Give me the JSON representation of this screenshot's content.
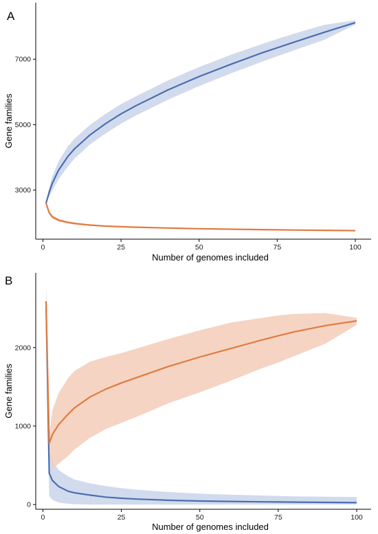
{
  "chart_data": [
    {
      "type": "line",
      "panel_label": "A",
      "xlabel": "Number of genomes included",
      "ylabel": "Gene families",
      "xlim": [
        1,
        100
      ],
      "ylim": [
        1500,
        8600
      ],
      "xticks": [
        0,
        25,
        50,
        75,
        100
      ],
      "yticks": [
        3000,
        5000,
        7000
      ],
      "grid": false,
      "legend": "none",
      "x": [
        1,
        2,
        3,
        5,
        8,
        10,
        15,
        20,
        25,
        30,
        40,
        50,
        60,
        70,
        75,
        80,
        90,
        100
      ],
      "series": [
        {
          "color": "#4a6eb0",
          "band_color": "#c9d5ea",
          "values": [
            2600,
            2930,
            3210,
            3610,
            4030,
            4250,
            4680,
            5030,
            5330,
            5590,
            6060,
            6470,
            6840,
            7190,
            7350,
            7510,
            7820,
            8120
          ],
          "lower": [
            2600,
            2790,
            2990,
            3330,
            3720,
            3950,
            4390,
            4730,
            5030,
            5290,
            5760,
            6180,
            6560,
            6920,
            7090,
            7260,
            7590,
            8060
          ],
          "upper": [
            2600,
            3080,
            3420,
            3880,
            4340,
            4560,
            4990,
            5330,
            5630,
            5880,
            6350,
            6760,
            7130,
            7460,
            7620,
            7770,
            8050,
            8190
          ]
        },
        {
          "color": "#e07b3f",
          "band_color": "#f3cdb8",
          "values": [
            2600,
            2310,
            2180,
            2080,
            2010,
            1980,
            1930,
            1900,
            1880,
            1865,
            1840,
            1820,
            1805,
            1792,
            1786,
            1780,
            1770,
            1760
          ],
          "lower": [
            2600,
            2260,
            2130,
            2040,
            1980,
            1950,
            1910,
            1885,
            1865,
            1852,
            1830,
            1812,
            1798,
            1786,
            1780,
            1775,
            1765,
            1756
          ],
          "upper": [
            2600,
            2370,
            2240,
            2130,
            2050,
            2015,
            1955,
            1918,
            1895,
            1880,
            1852,
            1830,
            1813,
            1799,
            1792,
            1786,
            1775,
            1765
          ]
        }
      ]
    },
    {
      "type": "line",
      "panel_label": "B",
      "xlabel": "Number of genomes included",
      "ylabel": "Gene families",
      "xlim": [
        1,
        100
      ],
      "ylim": [
        -60,
        2900
      ],
      "xticks": [
        0,
        25,
        50,
        75,
        100
      ],
      "yticks": [
        0,
        1000,
        2000
      ],
      "grid": false,
      "legend": "none",
      "x": [
        1,
        2,
        3,
        5,
        8,
        10,
        15,
        20,
        25,
        30,
        40,
        50,
        60,
        70,
        75,
        80,
        90,
        100
      ],
      "series": [
        {
          "color": "#4a6eb0",
          "band_color": "#c9d5ea",
          "values": [
            2590,
            400,
            310,
            230,
            170,
            150,
            120,
            95,
            80,
            70,
            55,
            45,
            40,
            35,
            33,
            31,
            28,
            25
          ],
          "lower": [
            2450,
            110,
            60,
            25,
            10,
            5,
            0,
            0,
            0,
            0,
            0,
            0,
            0,
            0,
            0,
            0,
            0,
            0
          ],
          "upper": [
            2780,
            680,
            560,
            440,
            360,
            320,
            270,
            235,
            210,
            190,
            160,
            140,
            125,
            115,
            110,
            105,
            100,
            95
          ]
        },
        {
          "color": "#e07b3f",
          "band_color": "#f3cdb8",
          "values": [
            2590,
            780,
            890,
            1020,
            1150,
            1230,
            1370,
            1470,
            1550,
            1620,
            1760,
            1880,
            1990,
            2100,
            2150,
            2200,
            2280,
            2340
          ],
          "lower": [
            2450,
            720,
            460,
            520,
            620,
            700,
            850,
            960,
            1040,
            1120,
            1290,
            1430,
            1580,
            1740,
            1810,
            1890,
            2050,
            2290
          ],
          "upper": [
            2780,
            860,
            1200,
            1420,
            1610,
            1700,
            1820,
            1880,
            1930,
            1990,
            2110,
            2220,
            2320,
            2380,
            2410,
            2430,
            2440,
            2380
          ]
        }
      ]
    }
  ]
}
